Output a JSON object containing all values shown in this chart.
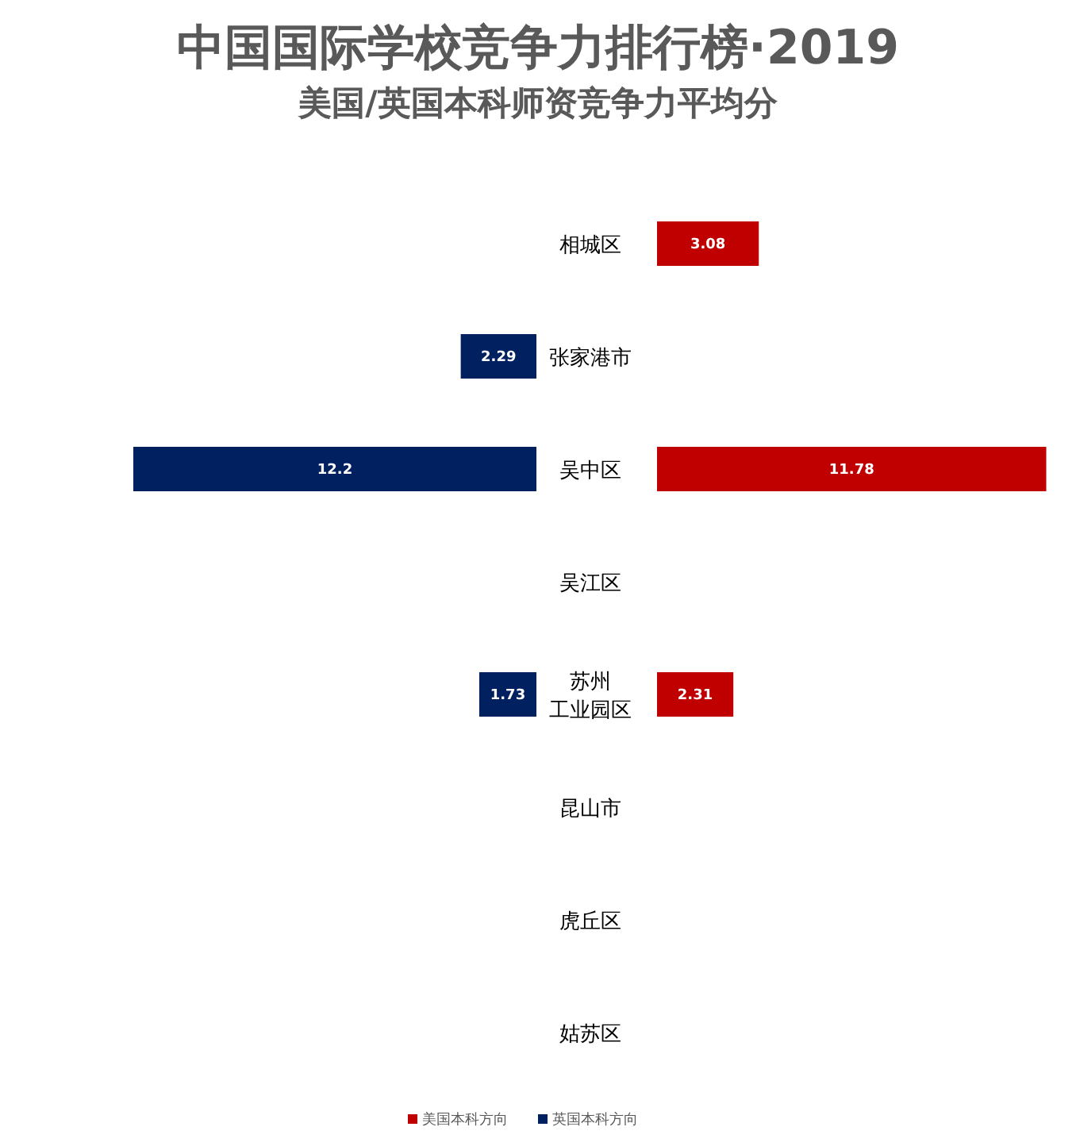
{
  "chart_data": [
    {
      "type": "bar",
      "orientation": "horizontal",
      "title": "中国国际学校竞争力排行榜·2019",
      "subtitle": "美国/英国本科师资竞争力平均分",
      "categories": [
        "相城区",
        "张家港市",
        "吴中区",
        "吴江区",
        "苏州工业园区",
        "昆山市",
        "虎丘区",
        "姑苏区"
      ],
      "series": [
        {
          "name": "英国本科方向",
          "color": "#002060",
          "values": [
            null,
            2.29,
            12.2,
            null,
            1.73,
            null,
            null,
            null
          ]
        }
      ],
      "data_labels": true,
      "legend": "bottom"
    },
    {
      "type": "bar",
      "orientation": "horizontal",
      "categories": [
        null,
        null,
        null,
        null,
        null,
        null,
        null,
        null
      ],
      "series": [
        {
          "name": "美国本科方向",
          "color": "#c00000",
          "values": [
            3.08,
            null,
            11.78,
            null,
            2.31,
            null,
            null,
            null
          ]
        }
      ],
      "data_labels": true,
      "legend": "bottom"
    }
  ]
}
